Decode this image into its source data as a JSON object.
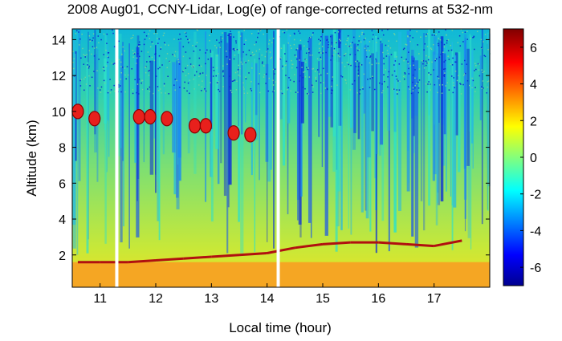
{
  "chart_data": {
    "type": "heatmap",
    "title": "2008 Aug01, CCNY-Lidar, Log(e) of range-corrected returns at 532-nm",
    "xlabel": "Local time (hour)",
    "ylabel": "Altitude (km)",
    "xlim": [
      10.5,
      18.0
    ],
    "ylim": [
      0.2,
      14.6
    ],
    "xticks": [
      11,
      12,
      13,
      14,
      15,
      16,
      17
    ],
    "yticks": [
      2,
      4,
      6,
      8,
      10,
      12,
      14
    ],
    "colorbar": {
      "range": [
        -7,
        7
      ],
      "ticks": [
        6,
        4,
        2,
        0,
        -2,
        -4,
        -6
      ],
      "colormap": "jet"
    },
    "data_gaps_hour": [
      11.3,
      14.2
    ],
    "boundary_layer_top_km": {
      "x": [
        10.6,
        11.0,
        11.5,
        12.0,
        12.5,
        13.0,
        13.5,
        14.0,
        14.5,
        15.0,
        15.5,
        16.0,
        16.5,
        17.0,
        17.5
      ],
      "y": [
        1.6,
        1.6,
        1.6,
        1.7,
        1.8,
        1.9,
        2.0,
        2.1,
        2.4,
        2.6,
        2.7,
        2.7,
        2.6,
        2.5,
        2.8
      ]
    },
    "cloud_layer_km": {
      "x": [
        10.6,
        10.9,
        11.7,
        11.9,
        12.2,
        12.7,
        12.9,
        13.4,
        13.7
      ],
      "y": [
        10.0,
        9.6,
        9.7,
        9.7,
        9.6,
        9.2,
        9.2,
        8.8,
        8.7
      ]
    },
    "grid": false,
    "legend": "colorbar-right"
  }
}
